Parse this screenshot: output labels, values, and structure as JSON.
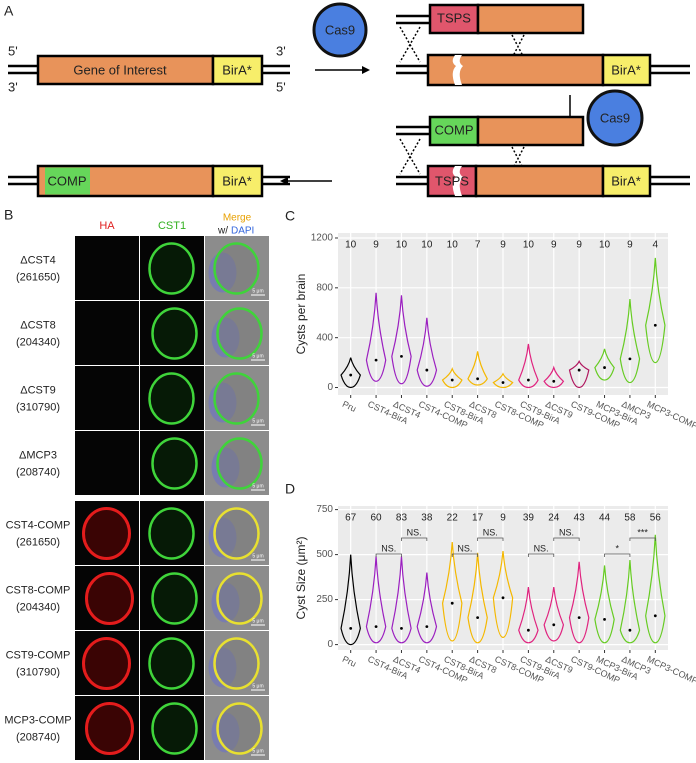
{
  "panel_a": {
    "label": "A",
    "five_prime": "5'",
    "three_prime": "3'",
    "gene": "Gene of Interest",
    "bira": "BirA*",
    "cas9": "Cas9",
    "tsps": "TSPS",
    "comp": "COMP"
  },
  "panel_b": {
    "label": "B",
    "columns": {
      "ha": "HA",
      "cst1": "CST1",
      "merge": "Merge",
      "with": "w/",
      "dapi": "DAPI"
    },
    "rows": [
      {
        "name": "ΔCST4",
        "id": "(261650)"
      },
      {
        "name": "ΔCST8",
        "id": "(204340)"
      },
      {
        "name": "ΔCST9",
        "id": "(310790)"
      },
      {
        "name": "ΔMCP3",
        "id": "(208740)"
      },
      {
        "name": "CST4-COMP",
        "id": "(261650)"
      },
      {
        "name": "CST8-COMP",
        "id": "(204340)"
      },
      {
        "name": "CST9-COMP",
        "id": "(310790)"
      },
      {
        "name": "MCP3-COMP",
        "id": "(208740)"
      }
    ],
    "scale_bar": "5 μm"
  },
  "chart_data": [
    {
      "type": "violin",
      "panel_label": "C",
      "y_label": "Cysts per brain",
      "categories": [
        "Pru",
        "CST4-BirA",
        "ΔCST4",
        "CST4-COMP",
        "CST8-BirA",
        "ΔCST8",
        "CST8-COMP",
        "CST9-BirA",
        "ΔCST9",
        "CST9-COMP",
        "MCP3-BirA",
        "ΔMCP3",
        "MCP3-COMP"
      ],
      "colors": [
        "#000000",
        "#9b1fc0",
        "#9b1fc0",
        "#9b1fc0",
        "#f5b800",
        "#f5b800",
        "#f5b800",
        "#e0237f",
        "#e0237f",
        "#b0175f",
        "#66cc22",
        "#66cc22",
        "#66cc22"
      ],
      "n": [
        10,
        9,
        10,
        10,
        10,
        7,
        9,
        10,
        9,
        9,
        10,
        9,
        4
      ],
      "min": [
        0,
        50,
        30,
        10,
        0,
        20,
        0,
        0,
        0,
        0,
        60,
        40,
        200
      ],
      "median": [
        100,
        220,
        250,
        140,
        60,
        70,
        40,
        60,
        50,
        140,
        160,
        230,
        500
      ],
      "max": [
        240,
        760,
        740,
        560,
        150,
        290,
        110,
        350,
        160,
        210,
        310,
        710,
        1040
      ],
      "ylim": [
        -60,
        1240
      ],
      "yticks": [
        0,
        400,
        800,
        1200
      ],
      "grid": true
    },
    {
      "type": "violin",
      "panel_label": "D",
      "y_label": "Cyst Size (μm²)",
      "categories": [
        "Pru",
        "CST4-BirA",
        "ΔCST4",
        "CST4-COMP",
        "CST8-BirA",
        "ΔCST8",
        "CST8-COMP",
        "CST9-BirA",
        "ΔCST9",
        "CST9-COMP",
        "MCP3-BirA",
        "ΔMCP3",
        "MCP3-COMP"
      ],
      "colors": [
        "#000000",
        "#9b1fc0",
        "#9b1fc0",
        "#9b1fc0",
        "#f5b800",
        "#f5b800",
        "#f5b800",
        "#e0237f",
        "#e0237f",
        "#e0237f",
        "#66cc22",
        "#66cc22",
        "#66cc22"
      ],
      "n": [
        67,
        60,
        83,
        38,
        22,
        17,
        9,
        39,
        24,
        43,
        44,
        58,
        56
      ],
      "min": [
        0,
        10,
        10,
        10,
        20,
        10,
        40,
        10,
        20,
        10,
        10,
        10,
        10
      ],
      "median": [
        90,
        100,
        90,
        100,
        230,
        150,
        260,
        80,
        110,
        150,
        140,
        80,
        160
      ],
      "max": [
        500,
        490,
        490,
        400,
        570,
        510,
        520,
        320,
        320,
        460,
        440,
        470,
        610
      ],
      "ylim": [
        -30,
        770
      ],
      "yticks": [
        0,
        250,
        500,
        750
      ],
      "grid": true,
      "comparisons": [
        {
          "groups": [
            "CST4-BirA",
            "ΔCST4"
          ],
          "label": "NS."
        },
        {
          "groups": [
            "ΔCST4",
            "CST4-COMP"
          ],
          "label": "NS."
        },
        {
          "groups": [
            "CST8-BirA",
            "ΔCST8"
          ],
          "label": "NS."
        },
        {
          "groups": [
            "ΔCST8",
            "CST8-COMP"
          ],
          "label": "NS."
        },
        {
          "groups": [
            "CST9-BirA",
            "ΔCST9"
          ],
          "label": "NS."
        },
        {
          "groups": [
            "ΔCST9",
            "CST9-COMP"
          ],
          "label": "NS."
        },
        {
          "groups": [
            "MCP3-BirA",
            "ΔMCP3"
          ],
          "label": "*"
        },
        {
          "groups": [
            "ΔMCP3",
            "MCP3-COMP"
          ],
          "label": "***"
        }
      ]
    }
  ]
}
